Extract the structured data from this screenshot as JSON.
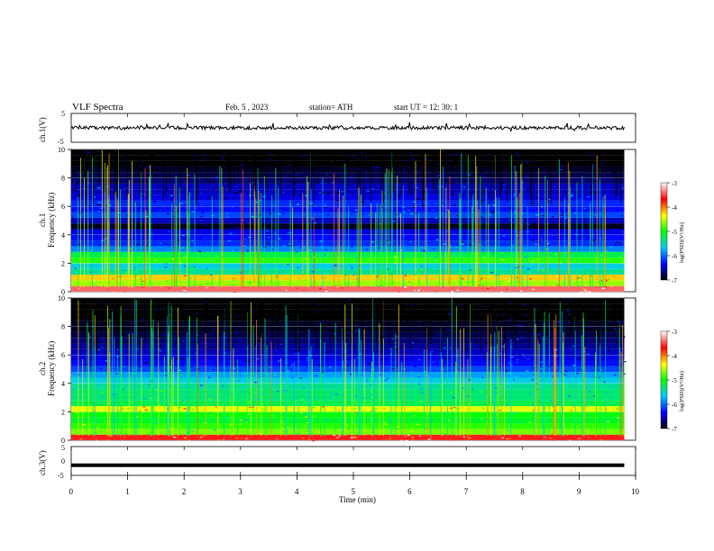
{
  "header": {
    "title": "VLF  Spectra",
    "date": "Feb. 5  , 2023",
    "station": "station= ATH",
    "start": "start  UT  =    12: 30: 1"
  },
  "chart_data": [
    {
      "type": "line",
      "id": "ch1-voltage",
      "ylabel": "ch.1(V)",
      "ylim": [
        -5,
        5
      ],
      "yticks": [
        5,
        -5
      ],
      "xlim": [
        0,
        10
      ],
      "trace_level_approx": 0,
      "trace_noise_approx": 0.6,
      "data_end_min": 9.8
    },
    {
      "type": "heatmap",
      "id": "ch1-spectrogram",
      "ylabel_line1": "ch.1",
      "ylabel_line2": "Frequency  (kHz)",
      "ylim": [
        0,
        10
      ],
      "yticks": [
        0,
        2,
        4,
        6,
        8,
        10
      ],
      "xlim": [
        0,
        10
      ],
      "data_end_min": 9.8,
      "colorbar": {
        "label": "log(PSD)(V²/Hz)",
        "range": [
          -7,
          -3
        ],
        "ticks": [
          "-3",
          "-4",
          "-5",
          "-6",
          "-7"
        ]
      },
      "bands_khz": [
        {
          "f": 0.0,
          "level": -3.4
        },
        {
          "f": 0.4,
          "level": -4.6
        },
        {
          "f": 0.8,
          "level": -4.2
        },
        {
          "f": 1.2,
          "level": -5.4
        },
        {
          "f": 1.6,
          "level": -5.6
        },
        {
          "f": 2.0,
          "level": -4.9
        },
        {
          "f": 2.4,
          "level": -5.2
        },
        {
          "f": 2.8,
          "level": -5.9
        },
        {
          "f": 3.2,
          "level": -6.2
        },
        {
          "f": 3.6,
          "level": -6.3
        },
        {
          "f": 4.0,
          "level": -6.4
        },
        {
          "f": 4.4,
          "level": -6.9
        },
        {
          "f": 4.8,
          "level": -6.5
        },
        {
          "f": 5.2,
          "level": -6.1
        },
        {
          "f": 5.6,
          "level": -6.3
        },
        {
          "f": 6.0,
          "level": -6.2
        },
        {
          "f": 6.4,
          "level": -6.4
        },
        {
          "f": 6.8,
          "level": -6.5
        },
        {
          "f": 7.2,
          "level": -6.5
        },
        {
          "f": 7.6,
          "level": -6.7
        },
        {
          "f": 8.0,
          "level": -6.8
        },
        {
          "f": 8.4,
          "level": -6.9
        },
        {
          "f": 8.8,
          "level": -7.0
        },
        {
          "f": 9.2,
          "level": -7.0
        },
        {
          "f": 9.6,
          "level": -7.0
        }
      ]
    },
    {
      "type": "heatmap",
      "id": "ch2-spectrogram",
      "ylabel_line1": "ch.2",
      "ylabel_line2": "Frequency  (kHz)",
      "ylim": [
        0,
        10
      ],
      "yticks": [
        0,
        2,
        4,
        6,
        8,
        10
      ],
      "xlim": [
        0,
        10
      ],
      "data_end_min": 9.8,
      "colorbar": {
        "label": "log(PSD)(V²/Hz)",
        "range": [
          -7,
          -3
        ],
        "ticks": [
          "-3",
          "-4",
          "-5",
          "-6",
          "-7"
        ]
      },
      "bands_khz": [
        {
          "f": 0.0,
          "level": -3.6
        },
        {
          "f": 0.4,
          "level": -4.7
        },
        {
          "f": 0.8,
          "level": -4.9
        },
        {
          "f": 1.2,
          "level": -5.1
        },
        {
          "f": 1.6,
          "level": -5.0
        },
        {
          "f": 2.0,
          "level": -4.4
        },
        {
          "f": 2.4,
          "level": -5.2
        },
        {
          "f": 2.8,
          "level": -5.3
        },
        {
          "f": 3.2,
          "level": -5.3
        },
        {
          "f": 3.6,
          "level": -5.4
        },
        {
          "f": 4.0,
          "level": -5.6
        },
        {
          "f": 4.4,
          "level": -5.8
        },
        {
          "f": 4.8,
          "level": -6.1
        },
        {
          "f": 5.2,
          "level": -6.3
        },
        {
          "f": 5.6,
          "level": -6.4
        },
        {
          "f": 6.0,
          "level": -6.5
        },
        {
          "f": 6.4,
          "level": -6.6
        },
        {
          "f": 6.8,
          "level": -6.7
        },
        {
          "f": 7.2,
          "level": -6.8
        },
        {
          "f": 7.6,
          "level": -6.9
        },
        {
          "f": 8.0,
          "level": -6.9
        },
        {
          "f": 8.4,
          "level": -7.0
        },
        {
          "f": 8.8,
          "level": -7.0
        },
        {
          "f": 9.2,
          "level": -7.0
        },
        {
          "f": 9.6,
          "level": -7.0
        }
      ]
    },
    {
      "type": "line",
      "id": "ch3-voltage",
      "ylabel": "ch.3(V)",
      "ylim": [
        -5,
        5
      ],
      "yticks": [
        5,
        0,
        -5
      ],
      "xlim": [
        0,
        10
      ],
      "trace_level_approx": -1.5,
      "data_end_min": 9.8
    }
  ],
  "xaxis": {
    "label": "Time  (min)",
    "ticks": [
      "0",
      "1",
      "2",
      "3",
      "4",
      "5",
      "6",
      "7",
      "8",
      "9",
      "10"
    ]
  },
  "colors": {
    "colormap": [
      "#000000",
      "#0000ff",
      "#00c8ff",
      "#00ff00",
      "#ffff00",
      "#ff0000",
      "#ffffff"
    ]
  }
}
